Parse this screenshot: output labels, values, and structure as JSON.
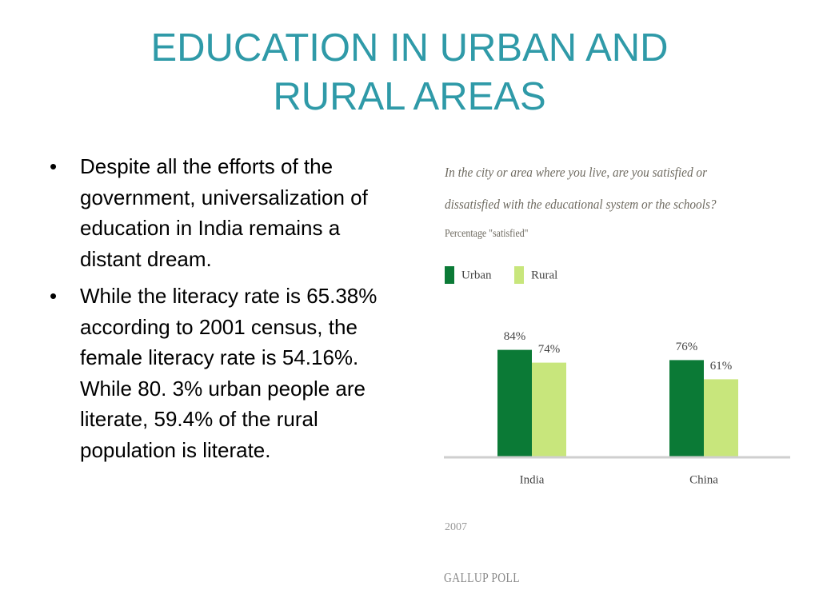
{
  "title": "EDUCATION IN URBAN AND RURAL AREAS",
  "bullets": [
    "Despite all the efforts of the government, universalization of education in India remains a distant dream.",
    "While the literacy rate is 65.38% according to 2001 census, the female literacy rate is 54.16%. While 80. 3% urban people are literate, 59.4% of the rural population is literate."
  ],
  "chart_data": {
    "type": "bar",
    "title": "In the city or area where you live, are you satisfied or dissatisfied with the educational system or the schools?",
    "subtitle": "Percentage \"satisfied\"",
    "categories": [
      "India",
      "China"
    ],
    "series": [
      {
        "name": "Urban",
        "color": "#0b7a36",
        "values": [
          84,
          76
        ],
        "value_labels": [
          "84%",
          "76%"
        ]
      },
      {
        "name": "Rural",
        "color": "#c8e67c",
        "values": [
          74,
          61
        ],
        "value_labels": [
          "74%",
          "61%"
        ]
      }
    ],
    "note": "2007",
    "source": "GALLUP POLL"
  }
}
